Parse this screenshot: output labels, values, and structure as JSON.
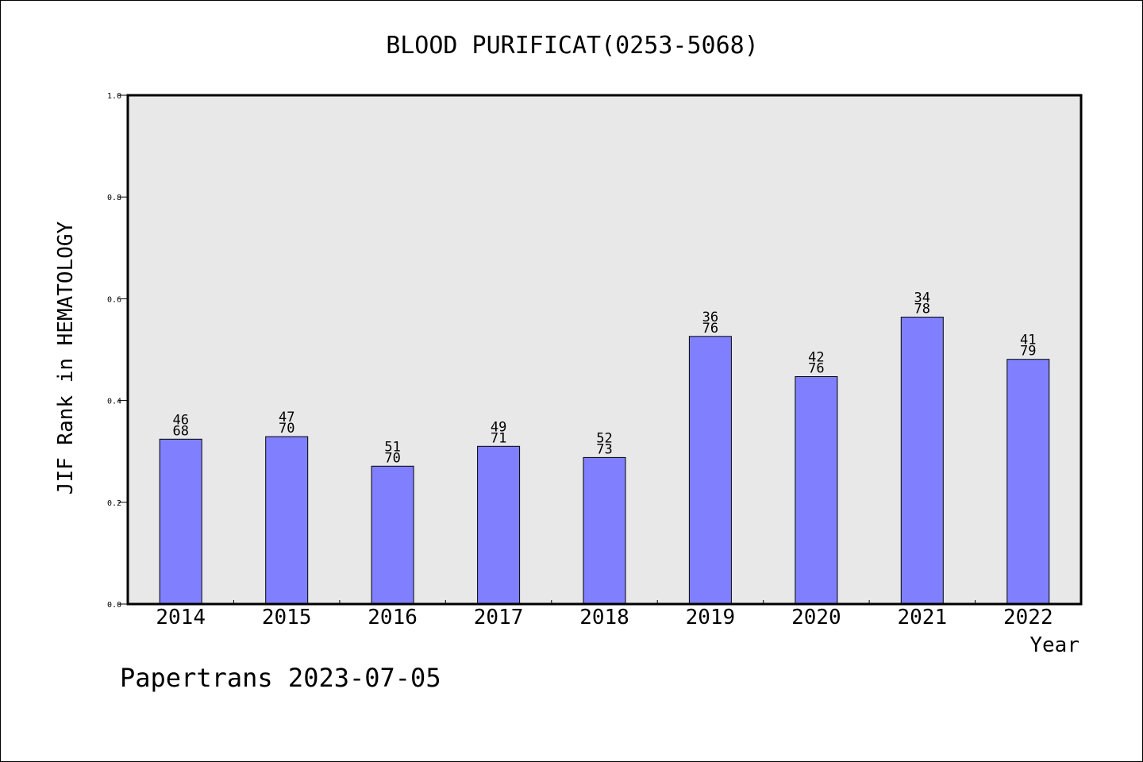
{
  "chart_data": {
    "type": "bar",
    "title": "BLOOD PURIFICAT(0253-5068)",
    "xlabel": "Year",
    "ylabel": "JIF Rank in HEMATOLOGY",
    "ylim": [
      0,
      1.0
    ],
    "yticks": [
      "0.0",
      "0.2",
      "0.4",
      "0.6",
      "0.8",
      "1.0"
    ],
    "grid": false,
    "categories": [
      "2014",
      "2015",
      "2016",
      "2017",
      "2018",
      "2019",
      "2020",
      "2021",
      "2022"
    ],
    "values": [
      0.324,
      0.329,
      0.271,
      0.31,
      0.288,
      0.526,
      0.447,
      0.564,
      0.481
    ],
    "rank": [
      "46",
      "47",
      "51",
      "49",
      "52",
      "36",
      "42",
      "34",
      "41"
    ],
    "total": [
      "68",
      "70",
      "70",
      "71",
      "73",
      "76",
      "76",
      "78",
      "79"
    ],
    "colors": {
      "bar": "#8080ff",
      "plot_bg": "#e8e8e8"
    }
  },
  "footer": {
    "text": "Papertrans 2023-07-05"
  }
}
